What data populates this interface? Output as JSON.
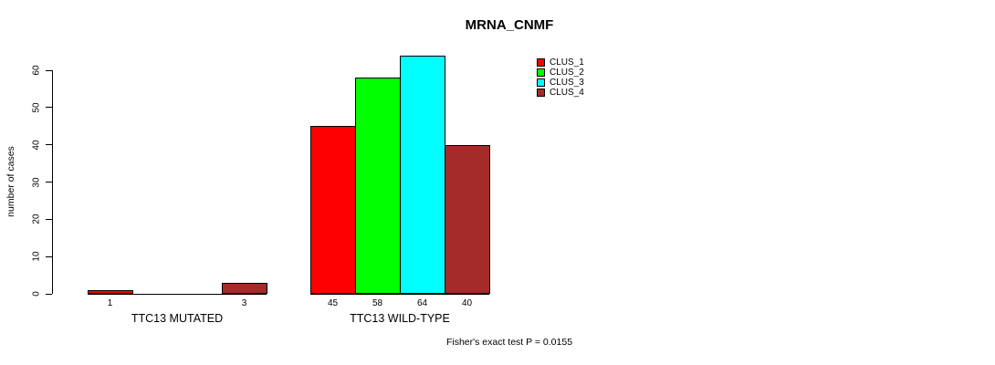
{
  "title": "MRNA_CNMF",
  "colors": {
    "background": "#ffffff",
    "axis": "#000000",
    "bar_border": "#000000",
    "clus_1": "#ff0000",
    "clus_2": "#00ff00",
    "clus_3": "#00ffff",
    "clus_4": "#a52a2a"
  },
  "chart_data": {
    "type": "bar",
    "title": "MRNA_CNMF",
    "xlabel": "",
    "ylabel": "number of cases",
    "ylim": [
      0,
      60
    ],
    "yticks": [
      0,
      10,
      20,
      30,
      40,
      50,
      60
    ],
    "grid": false,
    "legend_position": "top-right",
    "categories": [
      "TTC13 MUTATED",
      "TTC13 WILD-TYPE"
    ],
    "series": [
      {
        "name": "CLUS_1",
        "color": "#ff0000",
        "values": [
          1,
          45
        ]
      },
      {
        "name": "CLUS_2",
        "color": "#00ff00",
        "values": [
          0,
          58
        ]
      },
      {
        "name": "CLUS_3",
        "color": "#00ffff",
        "values": [
          0,
          64
        ]
      },
      {
        "name": "CLUS_4",
        "color": "#a52a2a",
        "values": [
          3,
          40
        ]
      }
    ],
    "bar_value_labels": {
      "shown": true,
      "hide_zero": true
    },
    "annotation": "Fisher's exact test P = 0.0155"
  }
}
